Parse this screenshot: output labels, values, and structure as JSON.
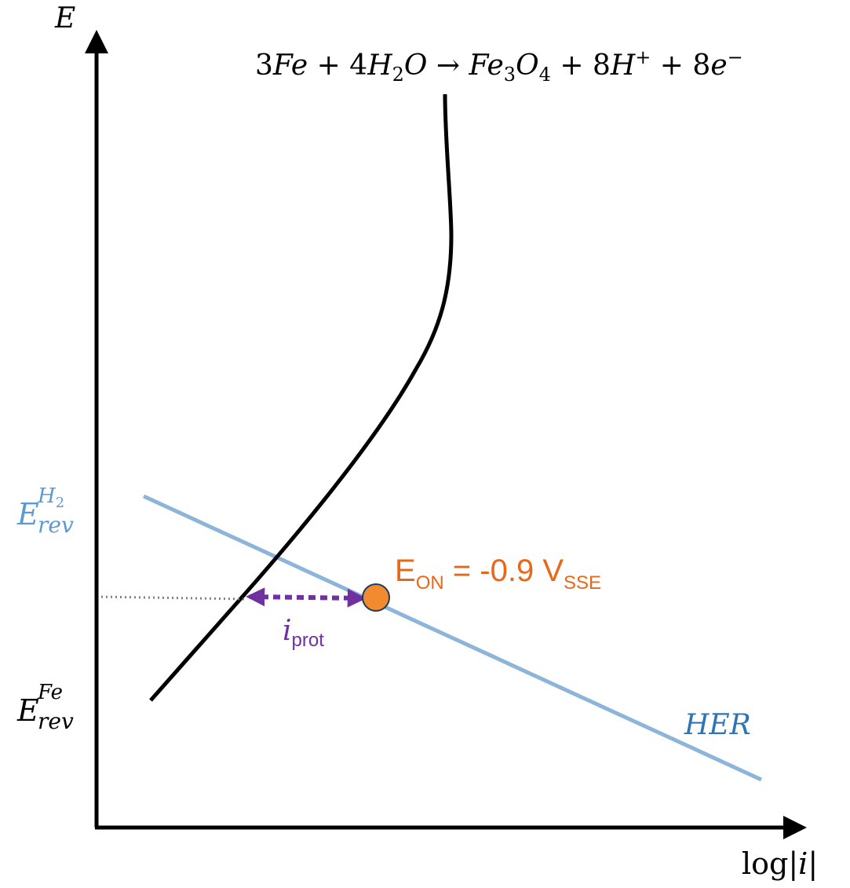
{
  "axes": {
    "y_label": "E",
    "x_label_func": "log",
    "x_label_var": "i"
  },
  "reaction": {
    "c1": "3",
    "fe": "Fe",
    "plus1": " + ",
    "c2": "4",
    "h": "H",
    "h_sub": "2",
    "o": "O",
    "arrow": " → ",
    "fe3": "Fe",
    "fe3_sub": "3",
    "o4": "O",
    "o4_sub": "4",
    "plus2": " + ",
    "c3": "8",
    "hp": "H",
    "hp_sup": "+",
    "plus3": " + ",
    "c4": "8",
    "e": "e",
    "e_sup": "−"
  },
  "erev_h2": {
    "base": "E",
    "sup_base": "H",
    "sup_sub": "2",
    "sub": "rev"
  },
  "erev_fe": {
    "base": "E",
    "sup": "Fe",
    "sub": "rev"
  },
  "her_label": "HER",
  "eon": {
    "base": "E",
    "sub1": "ON",
    "mid": " = -0.9 V",
    "sub2": "SSE"
  },
  "iprot": {
    "base": "i",
    "sub": "prot"
  },
  "colors": {
    "axis": "#000000",
    "fe_curve": "#000000",
    "her_line": "#8DB4D9",
    "her_text": "#2E74B5",
    "erev_h2_text": "#5B9BD5",
    "eon_text": "#E8681A",
    "eon_marker_fill": "#F28A30",
    "eon_marker_stroke": "#1F3B5C",
    "iprot_arrow": "#7030A0",
    "guide_dotted": "#808080"
  }
}
